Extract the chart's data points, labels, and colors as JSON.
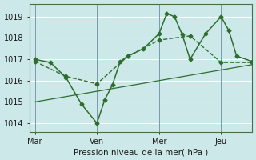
{
  "xlabel": "Pression niveau de la mer( hPa )",
  "bg_color": "#cce8e8",
  "grid_color": "#ffffff",
  "line_color": "#2d6e2d",
  "yticks": [
    1014,
    1015,
    1016,
    1017,
    1018,
    1019
  ],
  "ylim": [
    1013.6,
    1019.6
  ],
  "xtick_labels": [
    "Mar",
    "Ven",
    "Mer",
    "Jeu"
  ],
  "xtick_positions": [
    0,
    24,
    48,
    72
  ],
  "xlim": [
    -2,
    84
  ],
  "vline_positions": [
    0,
    24,
    48,
    72
  ],
  "line1_x": [
    0,
    6,
    12,
    18,
    24,
    27,
    30,
    33,
    36,
    42,
    48,
    51,
    54,
    57,
    60,
    66,
    72,
    75,
    78,
    84
  ],
  "line1_y": [
    1017.0,
    1016.85,
    1016.15,
    1014.9,
    1014.0,
    1015.1,
    1015.8,
    1016.9,
    1017.15,
    1017.5,
    1018.2,
    1019.15,
    1019.0,
    1018.15,
    1017.0,
    1018.2,
    1019.0,
    1018.35,
    1017.15,
    1016.9
  ],
  "line2_x": [
    0,
    12,
    24,
    36,
    48,
    60,
    72,
    84
  ],
  "line2_y": [
    1016.9,
    1016.2,
    1015.85,
    1017.15,
    1017.9,
    1018.1,
    1016.85,
    1016.85
  ],
  "line3_x": [
    0,
    84
  ],
  "line3_y": [
    1015.0,
    1016.75
  ],
  "marker": "D",
  "markersize": 2.5,
  "linewidth1": 1.1,
  "linewidth2": 1.0,
  "linewidth3": 0.9
}
